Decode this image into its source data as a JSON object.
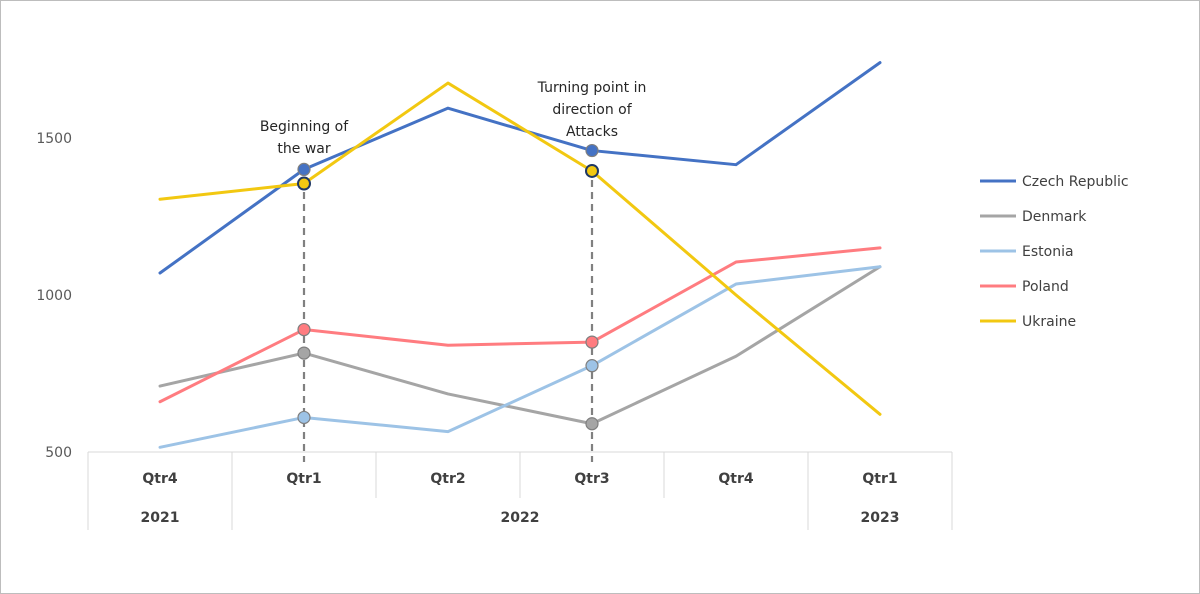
{
  "chart_data": {
    "type": "line",
    "title": "",
    "xlabel": "",
    "ylabel": "",
    "ylim": [
      500,
      1750
    ],
    "yticks": [
      500,
      1000,
      1500
    ],
    "grid": false,
    "legend_position": "right",
    "categories": [
      {
        "quarter": "Qtr4",
        "year": "2021"
      },
      {
        "quarter": "Qtr1",
        "year": "2022"
      },
      {
        "quarter": "Qtr2",
        "year": "2022"
      },
      {
        "quarter": "Qtr3",
        "year": "2022"
      },
      {
        "quarter": "Qtr4",
        "year": "2022"
      },
      {
        "quarter": "Qtr1",
        "year": "2023"
      }
    ],
    "year_groups": [
      {
        "label": "2021",
        "start": 0,
        "end": 0
      },
      {
        "label": "2022",
        "start": 1,
        "end": 4
      },
      {
        "label": "2023",
        "start": 5,
        "end": 5
      }
    ],
    "series": [
      {
        "name": "Czech Republic",
        "color": "#4472C4",
        "values": [
          1070,
          1400,
          1595,
          1460,
          1415,
          1740
        ],
        "markers": [
          1,
          3
        ]
      },
      {
        "name": "Denmark",
        "color": "#A5A5A5",
        "values": [
          710,
          815,
          685,
          590,
          805,
          1090
        ],
        "markers": [
          1,
          3
        ]
      },
      {
        "name": "Estonia",
        "color": "#9DC3E6",
        "values": [
          515,
          610,
          565,
          775,
          1035,
          1090
        ],
        "markers": [
          1,
          3
        ]
      },
      {
        "name": "Poland",
        "color": "#FF7C80",
        "values": [
          660,
          890,
          840,
          850,
          1105,
          1150
        ],
        "markers": [
          1,
          3
        ]
      },
      {
        "name": "Ukraine",
        "color": "#F2C811",
        "values": [
          1305,
          1355,
          1675,
          1395,
          1000,
          620
        ],
        "markers": [
          1,
          3
        ]
      }
    ],
    "annotations": [
      {
        "index": 1,
        "lines": [
          "Beginning of",
          "the war"
        ]
      },
      {
        "index": 3,
        "lines": [
          "Turning point in",
          "direction of",
          "Attacks"
        ]
      }
    ]
  }
}
